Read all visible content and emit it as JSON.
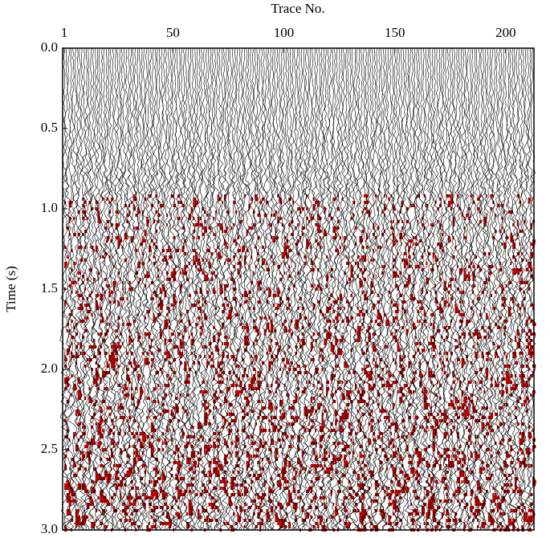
{
  "chart_data": {
    "type": "seismic",
    "x_label": "Trace No.",
    "y_label": "Time (s)",
    "xlim": [
      1,
      212
    ],
    "xticks": [
      1,
      50,
      100,
      150,
      200
    ],
    "ylim": [
      0,
      3
    ],
    "yticks": [
      {
        "value": 0,
        "label": "0.0"
      },
      0.5,
      {
        "value": 1,
        "label": "1.0"
      },
      1.5,
      {
        "value": 2,
        "label": "2.0"
      },
      2.5,
      {
        "value": 3,
        "label": "3.0"
      }
    ],
    "y_inverted": true,
    "trace_color": "#000000",
    "fill_color": "#c00000"
  }
}
